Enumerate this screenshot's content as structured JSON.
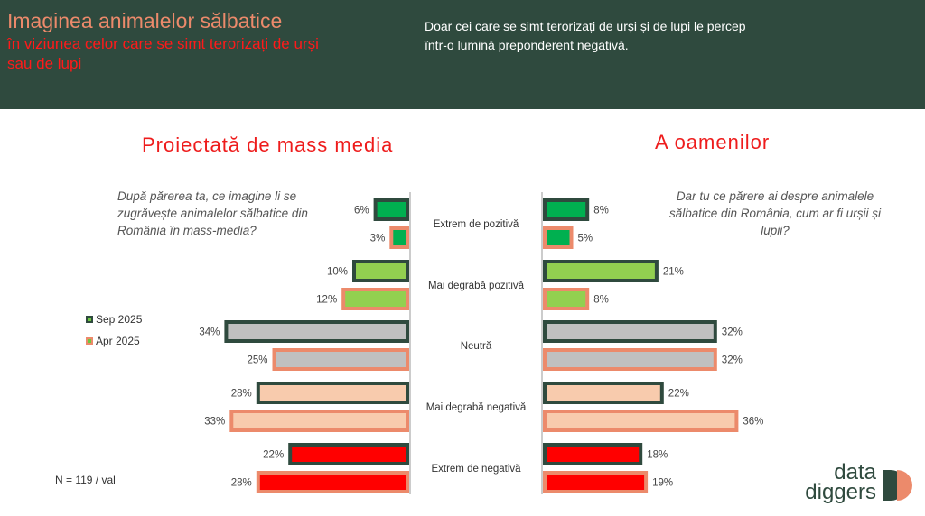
{
  "header": {
    "title": "Imaginea animalelor sălbatice",
    "subtitle": "în viziunea celor care se simt terorizați de urși sau de lupi",
    "note": "Doar cei care se simt terorizați de urși și de lupi le percep într-o lumină preponderent negativă."
  },
  "left_section": {
    "title": "Proiectată de mass media",
    "question": "După părerea ta, ce imagine li se zugrăvește animalelor sălbatice din România în mass-media?"
  },
  "right_section": {
    "title": "A oamenilor",
    "question": "Dar tu ce părere ai despre animalele sălbatice din România, cum ar fi urșii și lupii?"
  },
  "legend": {
    "sep": "Sep 2025",
    "apr": "Apr 2025"
  },
  "sample_note": "N = 119 / val",
  "logo": {
    "line1": "data",
    "line2": "diggers"
  },
  "colors": {
    "header_bg": "#2f4a3e",
    "sep_border": "#2f4a3e",
    "apr_border": "#ec8a6b",
    "cat_fills": [
      "#00b050",
      "#92d050",
      "#c0c0c0",
      "#f8cbad",
      "#ff0000"
    ]
  },
  "chart_data": {
    "type": "bar",
    "orientation": "horizontal-diverging",
    "categories": [
      "Extrem de pozitivă",
      "Mai degrabă pozitivă",
      "Neutră",
      "Mai degrabă negativă",
      "Extrem de negativă"
    ],
    "left": {
      "name": "Proiectată de mass media",
      "series": [
        {
          "name": "Sep 2025",
          "values": [
            6,
            10,
            34,
            28,
            22
          ]
        },
        {
          "name": "Apr 2025",
          "values": [
            3,
            12,
            25,
            33,
            28
          ]
        }
      ]
    },
    "right": {
      "name": "A oamenilor",
      "series": [
        {
          "name": "Sep 2025",
          "values": [
            8,
            21,
            32,
            22,
            18
          ]
        },
        {
          "name": "Apr 2025",
          "values": [
            5,
            8,
            32,
            36,
            19
          ]
        }
      ]
    },
    "unit": "%"
  }
}
